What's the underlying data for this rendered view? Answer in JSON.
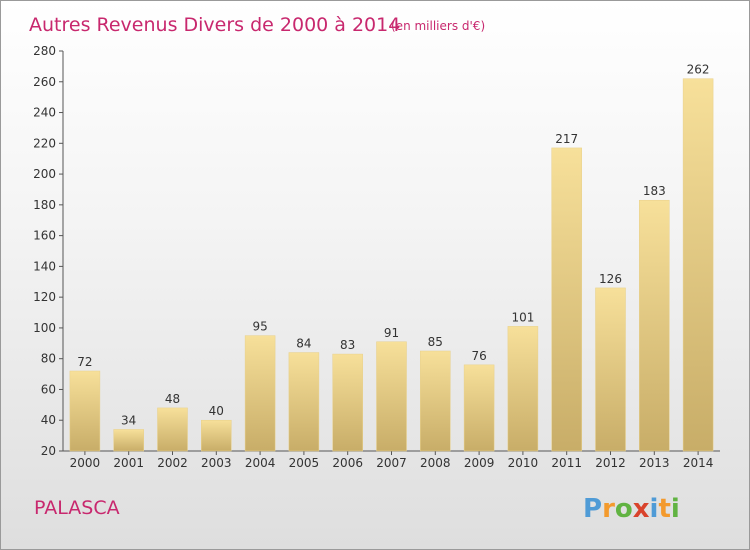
{
  "title": "Autres Revenus Divers de 2000 à 2014",
  "unit_note": "(en milliers d'€)",
  "place_name": "PALASCA",
  "brand": {
    "letters": [
      "P",
      "r",
      "o",
      "x",
      "i",
      "t",
      "i"
    ],
    "colors": [
      "#4f9bd6",
      "#f39a2d",
      "#61b342",
      "#d9432c",
      "#4f9bd6",
      "#f39a2d",
      "#61b342"
    ]
  },
  "colors": {
    "bar_light": "#f7e09a",
    "bar_dark": "#c8ad68",
    "title": "#c8286e"
  },
  "chart_data": {
    "type": "bar",
    "title": "Autres Revenus Divers de 2000 à 2014",
    "categories": [
      "2000",
      "2001",
      "2002",
      "2003",
      "2004",
      "2005",
      "2006",
      "2007",
      "2008",
      "2009",
      "2010",
      "2011",
      "2012",
      "2013",
      "2014"
    ],
    "values": [
      72,
      34,
      48,
      40,
      95,
      84,
      83,
      91,
      85,
      76,
      101,
      217,
      126,
      183,
      262
    ],
    "xlabel": "",
    "ylabel": "",
    "ylim": [
      20,
      280
    ],
    "yticks": [
      20,
      40,
      60,
      80,
      100,
      120,
      140,
      160,
      180,
      200,
      220,
      240,
      260,
      280
    ],
    "grid": false,
    "legend": "none"
  }
}
